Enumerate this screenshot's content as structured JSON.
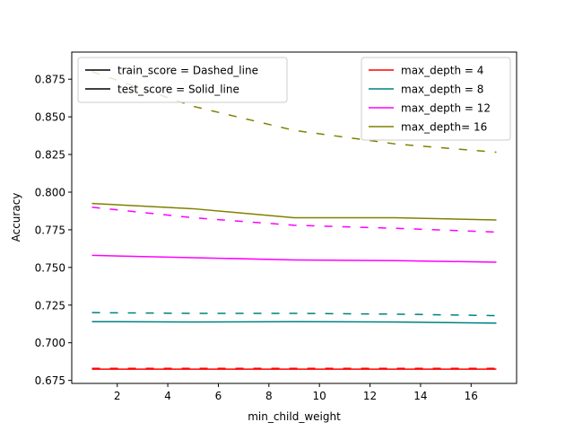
{
  "chart_data": {
    "type": "line",
    "title": "",
    "xlabel": "min_child_weight",
    "ylabel": "Accuracy",
    "xlim": [
      0.2,
      17.8
    ],
    "ylim": [
      0.673,
      0.893
    ],
    "xticks": [
      2,
      4,
      6,
      8,
      10,
      12,
      14,
      16
    ],
    "xtick_labels": [
      "2",
      "4",
      "6",
      "8",
      "10",
      "12",
      "14",
      "16"
    ],
    "yticks": [
      0.675,
      0.7,
      0.725,
      0.75,
      0.775,
      0.8,
      0.825,
      0.85,
      0.875
    ],
    "ytick_labels": [
      "0.675",
      "0.700",
      "0.725",
      "0.750",
      "0.775",
      "0.800",
      "0.825",
      "0.850",
      "0.875"
    ],
    "grid": false,
    "x": [
      1,
      5,
      9,
      13,
      17
    ],
    "series": [
      {
        "name": "max_depth = 4",
        "color": "#ff0000",
        "style": "dashed",
        "values": [
          0.683,
          0.683,
          0.683,
          0.683,
          0.683
        ]
      },
      {
        "name": "max_depth = 4",
        "color": "#ff0000",
        "style": "solid",
        "values": [
          0.6825,
          0.6825,
          0.6825,
          0.6825,
          0.6825
        ]
      },
      {
        "name": "max_depth = 8",
        "color": "#008080",
        "style": "dashed",
        "values": [
          0.72,
          0.7195,
          0.7195,
          0.719,
          0.718
        ]
      },
      {
        "name": "max_depth = 8",
        "color": "#008080",
        "style": "solid",
        "values": [
          0.714,
          0.7138,
          0.714,
          0.7138,
          0.713
        ]
      },
      {
        "name": "max_depth = 12",
        "color": "#ff00ff",
        "style": "dashed",
        "values": [
          0.79,
          0.783,
          0.778,
          0.776,
          0.7735
        ]
      },
      {
        "name": "max_depth = 12",
        "color": "#ff00ff",
        "style": "solid",
        "values": [
          0.758,
          0.7565,
          0.755,
          0.7545,
          0.7535
        ]
      },
      {
        "name": "max_depth= 16",
        "color": "#808000",
        "style": "dashed",
        "values": [
          0.88,
          0.857,
          0.841,
          0.832,
          0.8265
        ]
      },
      {
        "name": "max_depth= 16",
        "color": "#808000",
        "style": "solid",
        "values": [
          0.7925,
          0.789,
          0.783,
          0.783,
          0.7815
        ]
      }
    ],
    "legend_style": {
      "location": "upper left",
      "entries": [
        {
          "label": "train_score = Dashed_line",
          "color": "#000000"
        },
        {
          "label": "test_score = Solid_line",
          "color": "#000000"
        }
      ]
    },
    "legend_colors": {
      "location": "upper right",
      "entries": [
        {
          "label": "max_depth = 4",
          "color": "#ff0000"
        },
        {
          "label": "max_depth = 8",
          "color": "#008080"
        },
        {
          "label": "max_depth = 12",
          "color": "#ff00ff"
        },
        {
          "label": "max_depth= 16",
          "color": "#808000"
        }
      ]
    }
  }
}
